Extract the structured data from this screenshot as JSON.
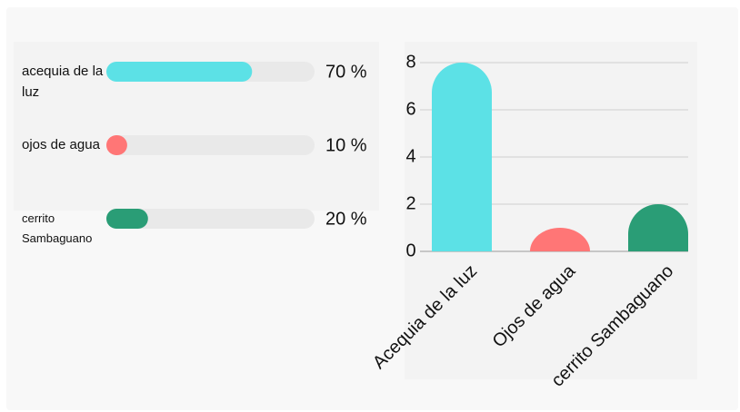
{
  "chart_data": [
    {
      "type": "progress",
      "categories": [
        "acequia de la luz",
        "ojos de agua",
        "cerrito Sambaguano"
      ],
      "values": [
        70,
        10,
        20
      ],
      "value_labels": [
        "70 %",
        "10 %",
        "20 %"
      ],
      "colors": [
        "#5ce1e6",
        "#ff7676",
        "#2a9d76"
      ],
      "xlim": [
        0,
        100
      ]
    },
    {
      "type": "bar",
      "categories": [
        "Acequia de la luz",
        "Ojos de agua",
        "cerrito Sambaguano"
      ],
      "values": [
        8,
        1,
        2
      ],
      "colors": [
        "#5ce1e6",
        "#ff7676",
        "#2a9d76"
      ],
      "ylim": [
        0,
        8
      ],
      "yticks": [
        0,
        2,
        4,
        6,
        8
      ],
      "grid": true
    }
  ]
}
